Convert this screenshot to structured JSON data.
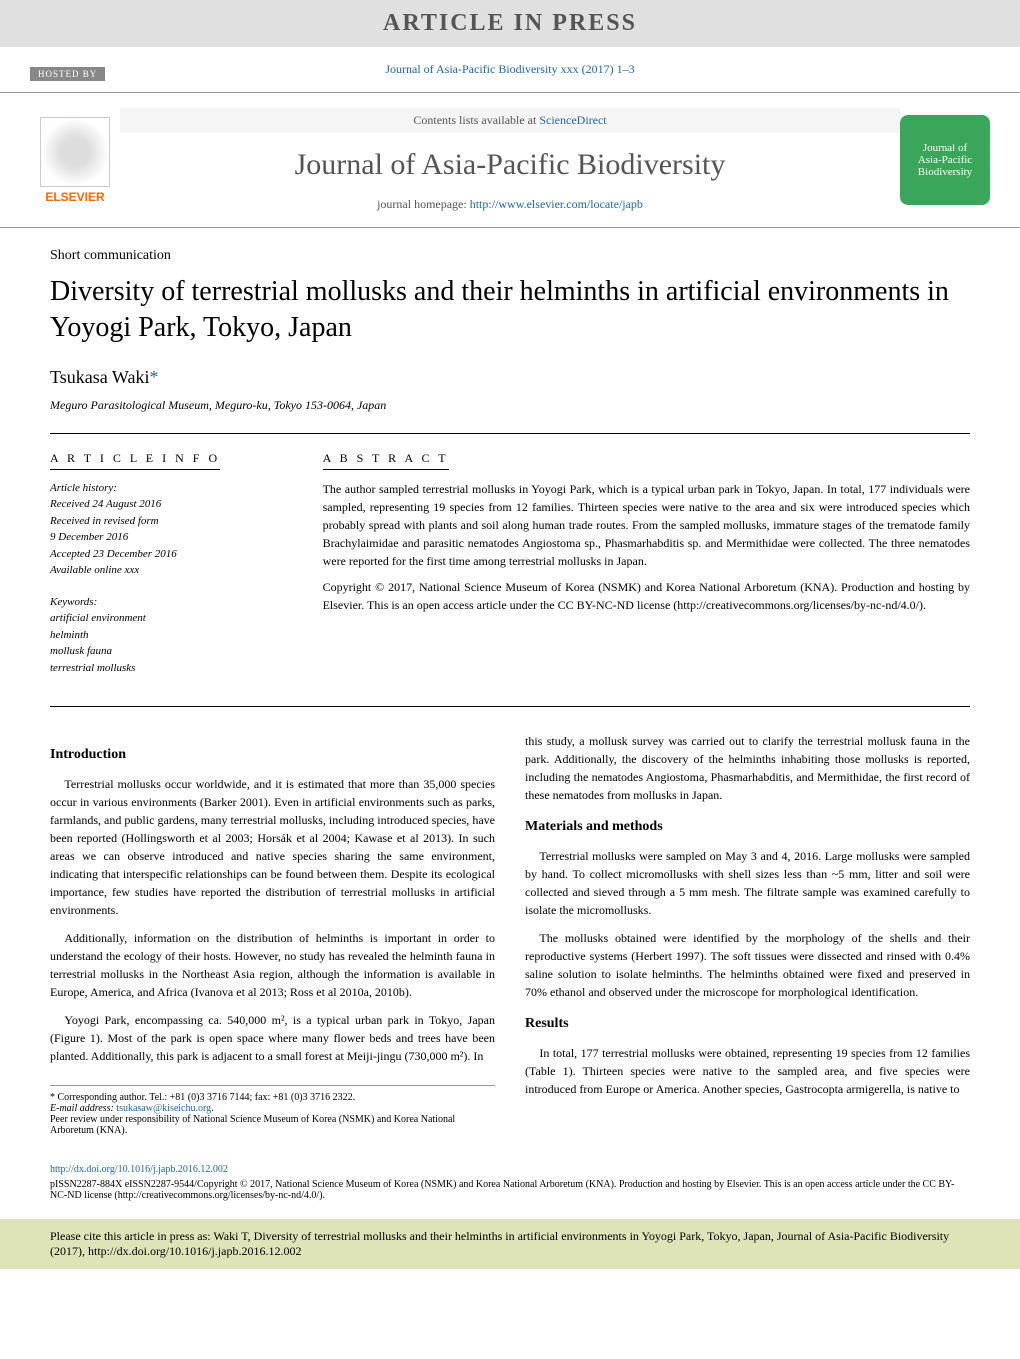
{
  "banner": {
    "text": "ARTICLE IN PRESS",
    "background_color": "#e0e0e0",
    "text_color": "#555555"
  },
  "citation": {
    "text": "Journal of Asia-Pacific Biodiversity xxx (2017) 1–3",
    "link_color": "#2266aa"
  },
  "journal_header": {
    "hosted_by": "HOSTED BY",
    "elsevier_brand": "ELSEVIER",
    "contents_line_prefix": "Contents lists available at ",
    "contents_line_link": "ScienceDirect",
    "journal_title": "Journal of Asia-Pacific Biodiversity",
    "homepage_prefix": "journal homepage: ",
    "homepage_url": "http://www.elsevier.com/locate/japb",
    "cover_line1": "Journal of",
    "cover_line2": "Asia-Pacific",
    "cover_line3": "Biodiversity",
    "cover_bg": "#3aa65a"
  },
  "article": {
    "type": "Short communication",
    "title": "Diversity of terrestrial mollusks and their helminths in artificial environments in Yoyogi Park, Tokyo, Japan",
    "author": "Tsukasa Waki",
    "affiliation": "Meguro Parasitological Museum, Meguro-ku, Tokyo 153-0064, Japan"
  },
  "article_info": {
    "heading": "A R T I C L E  I N F O",
    "history_label": "Article history:",
    "history_lines": [
      "Received 24 August 2016",
      "Received in revised form",
      "9 December 2016",
      "Accepted 23 December 2016",
      "Available online xxx"
    ],
    "keywords_label": "Keywords:",
    "keywords": [
      "artificial environment",
      "helminth",
      "mollusk fauna",
      "terrestrial mollusks"
    ]
  },
  "abstract": {
    "heading": "A B S T R A C T",
    "paragraphs": [
      "The author sampled terrestrial mollusks in Yoyogi Park, which is a typical urban park in Tokyo, Japan. In total, 177 individuals were sampled, representing 19 species from 12 families. Thirteen species were native to the area and six were introduced species which probably spread with plants and soil along human trade routes. From the sampled mollusks, immature stages of the trematode family Brachylaimidae and parasitic nematodes Angiostoma sp., Phasmarhabditis sp. and Mermithidae were collected. The three nematodes were reported for the first time among terrestrial mollusks in Japan.",
      "Copyright © 2017, National Science Museum of Korea (NSMK) and Korea National Arboretum (KNA). Production and hosting by Elsevier. This is an open access article under the CC BY-NC-ND license (http://creativecommons.org/licenses/by-nc-nd/4.0/)."
    ]
  },
  "sections": {
    "introduction": {
      "heading": "Introduction",
      "paragraphs": [
        "Terrestrial mollusks occur worldwide, and it is estimated that more than 35,000 species occur in various environments (Barker 2001). Even in artificial environments such as parks, farmlands, and public gardens, many terrestrial mollusks, including introduced species, have been reported (Hollingsworth et al 2003; Horsák et al 2004; Kawase et al 2013). In such areas we can observe introduced and native species sharing the same environment, indicating that interspecific relationships can be found between them. Despite its ecological importance, few studies have reported the distribution of terrestrial mollusks in artificial environments.",
        "Additionally, information on the distribution of helminths is important in order to understand the ecology of their hosts. However, no study has revealed the helminth fauna in terrestrial mollusks in the Northeast Asia region, although the information is available in Europe, America, and Africa (Ivanova et al 2013; Ross et al 2010a, 2010b).",
        "Yoyogi Park, encompassing ca. 540,000 m², is a typical urban park in Tokyo, Japan (Figure 1). Most of the park is open space where many flower beds and trees have been planted. Additionally, this park is adjacent to a small forest at Meiji-jingu (730,000 m²). In"
      ]
    },
    "intro_cont": "this study, a mollusk survey was carried out to clarify the terrestrial mollusk fauna in the park. Additionally, the discovery of the helminths inhabiting those mollusks is reported, including the nematodes Angiostoma, Phasmarhabditis, and Mermithidae, the first record of these nematodes from mollusks in Japan.",
    "materials": {
      "heading": "Materials and methods",
      "paragraphs": [
        "Terrestrial mollusks were sampled on May 3 and 4, 2016. Large mollusks were sampled by hand. To collect micromollusks with shell sizes less than ~5 mm, litter and soil were collected and sieved through a 5 mm mesh. The filtrate sample was examined carefully to isolate the micromollusks.",
        "The mollusks obtained were identified by the morphology of the shells and their reproductive systems (Herbert 1997). The soft tissues were dissected and rinsed with 0.4% saline solution to isolate helminths. The helminths obtained were fixed and preserved in 70% ethanol and observed under the microscope for morphological identification."
      ]
    },
    "results": {
      "heading": "Results",
      "paragraphs": [
        "In total, 177 terrestrial mollusks were obtained, representing 19 species from 12 families (Table 1). Thirteen species were native to the sampled area, and five species were introduced from Europe or America. Another species, Gastrocopta armigerella, is native to"
      ]
    }
  },
  "footnote": {
    "corresponding": "* Corresponding author. Tel.: +81 (0)3 3716 7144; fax: +81 (0)3 3716 2322.",
    "email_label": "E-mail address: ",
    "email": "tsukasaw@kiseichu.org",
    "peer_review": "Peer review under responsibility of National Science Museum of Korea (NSMK) and Korea National Arboretum (KNA)."
  },
  "footer": {
    "doi": "http://dx.doi.org/10.1016/j.japb.2016.12.002",
    "issn_line": "pISSN2287-884X eISSN2287-9544/Copyright © 2017, National Science Museum of Korea (NSMK) and Korea National Arboretum (KNA). Production and hosting by Elsevier. This is an open access article under the CC BY-NC-ND license (http://creativecommons.org/licenses/by-nc-nd/4.0/)."
  },
  "cite_box": {
    "text": "Please cite this article in press as: Waki T, Diversity of terrestrial mollusks and their helminths in artificial environments in Yoyogi Park, Tokyo, Japan, Journal of Asia-Pacific Biodiversity (2017), http://dx.doi.org/10.1016/j.japb.2016.12.002",
    "background_color": "#dfe3b8"
  },
  "colors": {
    "link": "#2266aa",
    "text": "#000000",
    "muted": "#555555",
    "elsevier_orange": "#ff6600"
  },
  "fonts": {
    "body_family": "Times New Roman",
    "body_size_pt": 12,
    "title_size_pt": 28,
    "heading_size_pt": 14
  }
}
